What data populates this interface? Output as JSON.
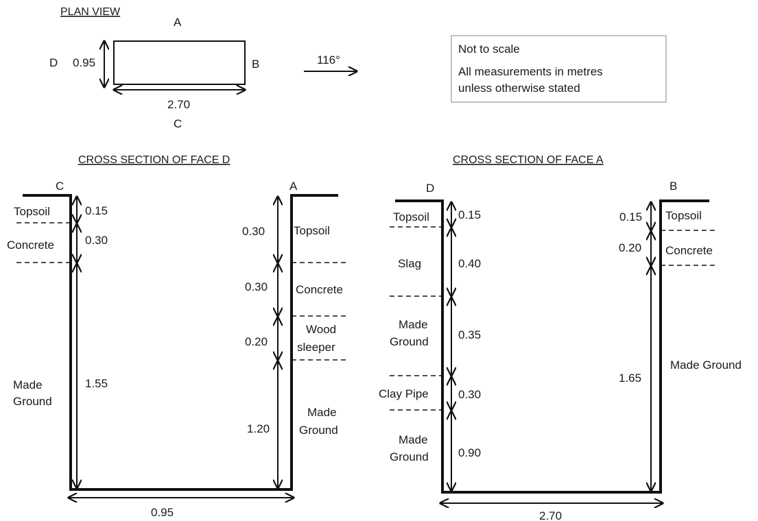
{
  "plan": {
    "title": "PLAN VIEW",
    "side_a": "A",
    "side_b": "B",
    "side_c": "C",
    "side_d": "D",
    "width": "0.95",
    "length": "2.70",
    "bearing": "116°"
  },
  "notes": {
    "line1": "Not to scale",
    "line2": "All measurements in metres",
    "line3": "unless otherwise stated"
  },
  "face_d": {
    "title": "CROSS SECTION OF FACE D",
    "corner_left": "C",
    "corner_right": "A",
    "bottom_width": "0.95",
    "left": [
      {
        "material": "Topsoil",
        "depth": "0.15"
      },
      {
        "material": "Concrete",
        "depth": "0.30"
      },
      {
        "material": "Made Ground",
        "depth": "1.55"
      }
    ],
    "right": [
      {
        "material": "Topsoil",
        "depth": "0.30"
      },
      {
        "material": "Concrete",
        "depth": "0.30"
      },
      {
        "material": "Wood sleeper",
        "depth": "0.20"
      },
      {
        "material": "Made Ground",
        "depth": "1.20"
      }
    ]
  },
  "face_a": {
    "title": "CROSS SECTION OF FACE A",
    "corner_left": "D",
    "corner_right": "B",
    "bottom_width": "2.70",
    "left": [
      {
        "material": "Topsoil",
        "depth": "0.15"
      },
      {
        "material": "Slag",
        "depth": "0.40"
      },
      {
        "material": "Made Ground",
        "depth": "0.35"
      },
      {
        "material": "Clay Pipe",
        "depth": "0.30"
      },
      {
        "material": "Made Ground",
        "depth": "0.90"
      }
    ],
    "right": [
      {
        "material": "Topsoil",
        "depth": "0.15"
      },
      {
        "material": "Concrete",
        "depth": "0.20"
      },
      {
        "material": "Made Ground",
        "depth": "1.65"
      }
    ]
  }
}
